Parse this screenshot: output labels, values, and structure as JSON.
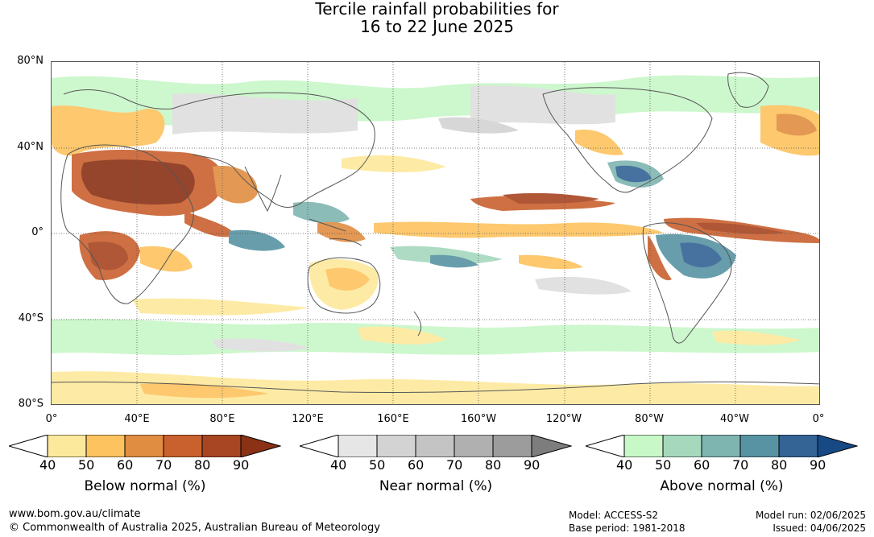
{
  "title": {
    "line1": "Tercile rainfall probabilities for",
    "line2": "16 to 22 June 2025"
  },
  "map": {
    "lat_labels": [
      "80°N",
      "40°N",
      "0°",
      "40°S",
      "80°S"
    ],
    "lon_labels": [
      "0°",
      "40°E",
      "80°E",
      "120°E",
      "160°E",
      "160°W",
      "120°W",
      "80°W",
      "40°W",
      "0°"
    ]
  },
  "legends": [
    {
      "title": "Below normal (%)",
      "ticks": [
        "40",
        "50",
        "60",
        "70",
        "80",
        "90"
      ],
      "colors": [
        "#ffffff",
        "#fde99c",
        "#fdc35f",
        "#e08d42",
        "#c9612f",
        "#a84522",
        "#8a3116"
      ]
    },
    {
      "title": "Near normal (%)",
      "ticks": [
        "40",
        "50",
        "60",
        "70",
        "80",
        "90"
      ],
      "colors": [
        "#ffffff",
        "#e6e6e6",
        "#d3d3d3",
        "#c4c4c4",
        "#b0b0b0",
        "#9c9c9c",
        "#7d7d7d"
      ]
    },
    {
      "title": "Above normal (%)",
      "ticks": [
        "40",
        "50",
        "60",
        "70",
        "80",
        "90"
      ],
      "colors": [
        "#ffffff",
        "#c8f7c8",
        "#a6d8bd",
        "#7fb5b0",
        "#5893a3",
        "#346395",
        "#174a85"
      ]
    }
  ],
  "footer": {
    "url": "www.bom.gov.au/climate",
    "copyright": "© Commonwealth of Australia 2025, Australian Bureau of Meteorology",
    "model": "Model: ACCESS-S2",
    "base_period": "Base period: 1981-2018",
    "model_run": "Model run: 02/06/2025",
    "issued": "Issued: 04/06/2025"
  }
}
